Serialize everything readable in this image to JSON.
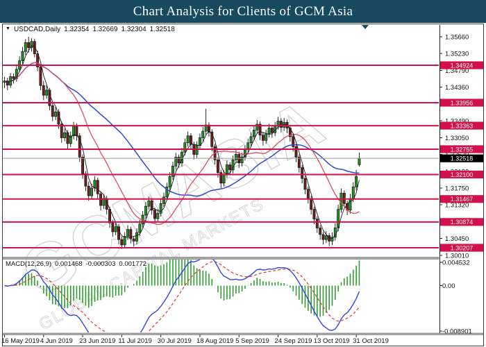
{
  "title_bar": {
    "title": "Chart Analysis for Clients of GCM Asia"
  },
  "chart_header": {
    "dropdown_icon": "▼",
    "symbol": "USDCAD,Daily",
    "open": "1.32354",
    "high": "1.32669",
    "low": "1.32304",
    "close": "1.32518"
  },
  "watermark": {
    "brand": "GCMASIA",
    "tagline": "GLOBAL CAPITAL MARKETS"
  },
  "colors": {
    "title_bg": "#17495f",
    "level_line_red": "#d2114a",
    "current_price_line": "#9a9a9a",
    "badge_black": "#000000",
    "bull_candle": "#209320",
    "bear_candle": "#702020",
    "candle_outline": "#111111",
    "ma_fast_black": "#1b1b1b",
    "ma_mid_red": "#e04a62",
    "ma_slow_blue": "#3247cf",
    "macd_line_blue": "#3742de",
    "macd_signal_red": "#e23333",
    "macd_histogram_green": "#2f9e2f",
    "watermark_gray": "#d4d4d4"
  },
  "chart_data": {
    "type": "candlestick",
    "symbol": "USDCAD",
    "timeframe": "Daily",
    "title": "USDCAD Daily candlestick chart with MACD(12,26,9)",
    "price_axis_ticks": [
      1.3566,
      1.3523,
      1.3479,
      1.3436,
      1.3349,
      1.3305,
      1.3262,
      1.3218,
      1.3175,
      1.3132,
      1.3045,
      1.3001
    ],
    "price_axis_range": [
      1.3001,
      1.3566
    ],
    "horizontal_level_lines": [
      1.34924,
      1.33956,
      1.33363,
      1.32755,
      1.321,
      1.31467,
      1.30874,
      1.30207
    ],
    "current_price": 1.32518,
    "x_axis_dates": [
      "16 May 2019",
      "4 Jun 2019",
      "23 Jun 2019",
      "11 Jul 2019",
      "30 Jul 2019",
      "18 Aug 2019",
      "5 Sep 2019",
      "24 Sep 2019",
      "13 Oct 2019",
      "31 Oct 2019"
    ],
    "candles_per_date_tick": 13,
    "candles_ohlc": [
      [
        1.3448,
        1.3462,
        1.3433,
        1.3452
      ],
      [
        1.3452,
        1.346,
        1.3428,
        1.3441
      ],
      [
        1.3441,
        1.3472,
        1.3434,
        1.3463
      ],
      [
        1.3463,
        1.3471,
        1.3445,
        1.3458
      ],
      [
        1.3458,
        1.3494,
        1.345,
        1.3482
      ],
      [
        1.3482,
        1.3516,
        1.3474,
        1.3504
      ],
      [
        1.3504,
        1.354,
        1.3495,
        1.3528
      ],
      [
        1.3528,
        1.356,
        1.3519,
        1.3551
      ],
      [
        1.3551,
        1.3566,
        1.3525,
        1.3538
      ],
      [
        1.3538,
        1.3562,
        1.3528,
        1.3554
      ],
      [
        1.3554,
        1.3561,
        1.3513,
        1.3522
      ],
      [
        1.3522,
        1.353,
        1.3477,
        1.3488
      ],
      [
        1.3488,
        1.3495,
        1.3428,
        1.344
      ],
      [
        1.344,
        1.3452,
        1.3402,
        1.3415
      ],
      [
        1.3415,
        1.3441,
        1.3406,
        1.3428
      ],
      [
        1.3428,
        1.3434,
        1.3376,
        1.3388
      ],
      [
        1.3388,
        1.3396,
        1.3348,
        1.336
      ],
      [
        1.336,
        1.3384,
        1.3351,
        1.3372
      ],
      [
        1.3372,
        1.3379,
        1.3328,
        1.334
      ],
      [
        1.334,
        1.3347,
        1.3292,
        1.3305
      ],
      [
        1.3305,
        1.3329,
        1.3296,
        1.3318
      ],
      [
        1.3318,
        1.3325,
        1.3277,
        1.329
      ],
      [
        1.329,
        1.3321,
        1.3281,
        1.331
      ],
      [
        1.331,
        1.3346,
        1.3301,
        1.3335
      ],
      [
        1.3335,
        1.3342,
        1.3297,
        1.331
      ],
      [
        1.331,
        1.3317,
        1.3243,
        1.3255
      ],
      [
        1.3255,
        1.3262,
        1.3199,
        1.3212
      ],
      [
        1.3212,
        1.3219,
        1.3167,
        1.318
      ],
      [
        1.318,
        1.3192,
        1.3142,
        1.3155
      ],
      [
        1.3155,
        1.3186,
        1.3147,
        1.3175
      ],
      [
        1.3175,
        1.3206,
        1.3166,
        1.3195
      ],
      [
        1.3195,
        1.3202,
        1.3147,
        1.316
      ],
      [
        1.316,
        1.3167,
        1.3117,
        1.313
      ],
      [
        1.313,
        1.3159,
        1.3121,
        1.3148
      ],
      [
        1.3148,
        1.3155,
        1.3107,
        1.312
      ],
      [
        1.312,
        1.3127,
        1.3072,
        1.3085
      ],
      [
        1.3085,
        1.3093,
        1.3049,
        1.3062
      ],
      [
        1.3062,
        1.3086,
        1.3053,
        1.3075
      ],
      [
        1.3075,
        1.3082,
        1.303,
        1.3042
      ],
      [
        1.3042,
        1.305,
        1.3018,
        1.3028
      ],
      [
        1.3028,
        1.3061,
        1.3021,
        1.305
      ],
      [
        1.305,
        1.3079,
        1.3041,
        1.3068
      ],
      [
        1.3068,
        1.3075,
        1.3032,
        1.3044
      ],
      [
        1.3044,
        1.3051,
        1.3024,
        1.3038
      ],
      [
        1.3038,
        1.3071,
        1.3029,
        1.306
      ],
      [
        1.306,
        1.3093,
        1.3051,
        1.3082
      ],
      [
        1.3082,
        1.3116,
        1.3073,
        1.3105
      ],
      [
        1.3105,
        1.3139,
        1.3096,
        1.3128
      ],
      [
        1.3128,
        1.3153,
        1.3119,
        1.3142
      ],
      [
        1.3142,
        1.3149,
        1.3106,
        1.3118
      ],
      [
        1.3118,
        1.3125,
        1.3084,
        1.3096
      ],
      [
        1.3096,
        1.3121,
        1.3087,
        1.311
      ],
      [
        1.311,
        1.3146,
        1.3101,
        1.3135
      ],
      [
        1.3135,
        1.3163,
        1.3126,
        1.3152
      ],
      [
        1.3152,
        1.3189,
        1.3143,
        1.3178
      ],
      [
        1.3178,
        1.3216,
        1.3169,
        1.3205
      ],
      [
        1.3205,
        1.3243,
        1.3196,
        1.3232
      ],
      [
        1.3232,
        1.3266,
        1.3223,
        1.3255
      ],
      [
        1.3255,
        1.3262,
        1.3228,
        1.324
      ],
      [
        1.324,
        1.3279,
        1.3231,
        1.3268
      ],
      [
        1.3268,
        1.3303,
        1.3259,
        1.3292
      ],
      [
        1.3292,
        1.3321,
        1.3283,
        1.331
      ],
      [
        1.331,
        1.3317,
        1.3276,
        1.3288
      ],
      [
        1.3288,
        1.3295,
        1.3249,
        1.3262
      ],
      [
        1.3262,
        1.3296,
        1.3253,
        1.3285
      ],
      [
        1.3285,
        1.3316,
        1.3276,
        1.3305
      ],
      [
        1.3305,
        1.3333,
        1.3296,
        1.3322
      ],
      [
        1.3322,
        1.338,
        1.3313,
        1.3338
      ],
      [
        1.3338,
        1.3345,
        1.3308,
        1.332
      ],
      [
        1.332,
        1.3327,
        1.327,
        1.3282
      ],
      [
        1.3282,
        1.3289,
        1.3236,
        1.3248
      ],
      [
        1.3248,
        1.3255,
        1.3202,
        1.3215
      ],
      [
        1.3215,
        1.3222,
        1.3175,
        1.3188
      ],
      [
        1.3188,
        1.3221,
        1.3179,
        1.321
      ],
      [
        1.321,
        1.3246,
        1.3201,
        1.3235
      ],
      [
        1.3235,
        1.3242,
        1.3209,
        1.3222
      ],
      [
        1.3222,
        1.3259,
        1.3213,
        1.3248
      ],
      [
        1.3248,
        1.3273,
        1.3239,
        1.3262
      ],
      [
        1.3262,
        1.3269,
        1.3227,
        1.324
      ],
      [
        1.324,
        1.3266,
        1.3231,
        1.3255
      ],
      [
        1.3255,
        1.3286,
        1.3246,
        1.3275
      ],
      [
        1.3275,
        1.3303,
        1.3266,
        1.3292
      ],
      [
        1.3292,
        1.3319,
        1.3283,
        1.3308
      ],
      [
        1.3308,
        1.3336,
        1.3299,
        1.3325
      ],
      [
        1.3325,
        1.3351,
        1.3316,
        1.334
      ],
      [
        1.334,
        1.3347,
        1.3299,
        1.3312
      ],
      [
        1.3312,
        1.3319,
        1.3285,
        1.3298
      ],
      [
        1.3298,
        1.3326,
        1.3289,
        1.3315
      ],
      [
        1.3315,
        1.3341,
        1.3306,
        1.333
      ],
      [
        1.333,
        1.3337,
        1.3305,
        1.3318
      ],
      [
        1.3318,
        1.3346,
        1.3309,
        1.3335
      ],
      [
        1.3335,
        1.3359,
        1.3326,
        1.3348
      ],
      [
        1.3348,
        1.3355,
        1.3319,
        1.3332
      ],
      [
        1.3332,
        1.3356,
        1.3323,
        1.3345
      ],
      [
        1.3345,
        1.3352,
        1.3317,
        1.333
      ],
      [
        1.333,
        1.3337,
        1.3295,
        1.3308
      ],
      [
        1.3308,
        1.3315,
        1.3269,
        1.3282
      ],
      [
        1.3282,
        1.3289,
        1.3242,
        1.3255
      ],
      [
        1.3255,
        1.3262,
        1.3215,
        1.3228
      ],
      [
        1.3228,
        1.3235,
        1.3187,
        1.32
      ],
      [
        1.32,
        1.3207,
        1.3159,
        1.3172
      ],
      [
        1.3172,
        1.3179,
        1.3135,
        1.3148
      ],
      [
        1.3148,
        1.3155,
        1.3107,
        1.312
      ],
      [
        1.312,
        1.3127,
        1.3082,
        1.3095
      ],
      [
        1.3095,
        1.3102,
        1.3059,
        1.3072
      ],
      [
        1.3072,
        1.3079,
        1.3042,
        1.3055
      ],
      [
        1.3055,
        1.3062,
        1.3029,
        1.3042
      ],
      [
        1.3042,
        1.3064,
        1.3033,
        1.3052
      ],
      [
        1.3052,
        1.3059,
        1.3025,
        1.3038
      ],
      [
        1.3038,
        1.306,
        1.3028,
        1.3048
      ],
      [
        1.3048,
        1.3084,
        1.3039,
        1.3072
      ],
      [
        1.3072,
        1.3132,
        1.3063,
        1.312
      ],
      [
        1.312,
        1.3174,
        1.3111,
        1.3162
      ],
      [
        1.3162,
        1.3169,
        1.3126,
        1.3135
      ],
      [
        1.3135,
        1.3142,
        1.3105,
        1.3118
      ],
      [
        1.3118,
        1.316,
        1.3109,
        1.3148
      ],
      [
        1.3148,
        1.319,
        1.3139,
        1.3178
      ],
      [
        1.3178,
        1.3222,
        1.3169,
        1.3205
      ],
      [
        1.32354,
        1.32669,
        1.32304,
        1.32518
      ]
    ],
    "macd": {
      "label": "MACD(12,26,9)",
      "macd_value": "0.001468",
      "osma_value": "-0.000303",
      "signal_value": "0.001772",
      "axis_max": "0.004532",
      "axis_zero": "0.00",
      "axis_min": "-0.008901"
    }
  }
}
